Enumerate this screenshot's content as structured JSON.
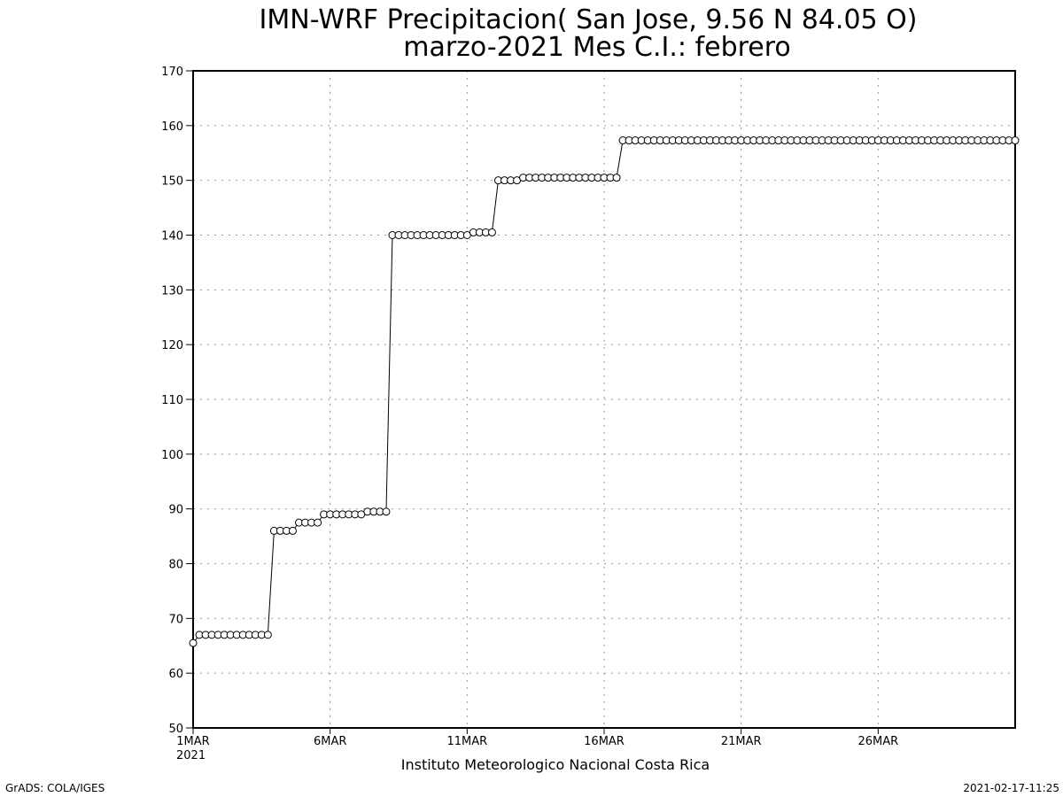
{
  "chart_data": {
    "type": "line",
    "title_line1": "IMN-WRF  Precipitacion( San Jose, 9.56  N 84.05  O)",
    "title_line2": "marzo-2021 Mes C.I.: febrero",
    "subtitle": "Instituto Meteorologico Nacional Costa Rica",
    "footer_left": "GrADS: COLA/IGES",
    "footer_right": "2021-02-17-11:25",
    "x_start_label": "1MAR",
    "x_start_year": "2021",
    "x_ticks": [
      {
        "label": "1MAR",
        "day": 1
      },
      {
        "label": "6MAR",
        "day": 6
      },
      {
        "label": "11MAR",
        "day": 11
      },
      {
        "label": "16MAR",
        "day": 16
      },
      {
        "label": "21MAR",
        "day": 21
      },
      {
        "label": "26MAR",
        "day": 26
      }
    ],
    "xlim": [
      1,
      31
    ],
    "ylim": [
      50,
      170
    ],
    "y_ticks": [
      50,
      60,
      70,
      80,
      90,
      100,
      110,
      120,
      130,
      140,
      150,
      160,
      170
    ],
    "grid": true,
    "marker": "open-circle",
    "line_color": "#000000",
    "series": [
      {
        "values": [
          65.5,
          67,
          67,
          67,
          67,
          67,
          67,
          67,
          67,
          67,
          67,
          67,
          67,
          86,
          86,
          86,
          86,
          87.5,
          87.5,
          87.5,
          87.5,
          89,
          89,
          89,
          89,
          89,
          89,
          89,
          89.5,
          89.5,
          89.5,
          89.5,
          140,
          140,
          140,
          140,
          140,
          140,
          140,
          140,
          140,
          140,
          140,
          140,
          140,
          140.5,
          140.5,
          140.5,
          140.5,
          150,
          150,
          150,
          150,
          150.5,
          150.5,
          150.5,
          150.5,
          150.5,
          150.5,
          150.5,
          150.5,
          150.5,
          150.5,
          150.5,
          150.5,
          150.5,
          150.5,
          150.5,
          150.5,
          157.3,
          157.3,
          157.3,
          157.3,
          157.3,
          157.3,
          157.3,
          157.3,
          157.3,
          157.3,
          157.3,
          157.3,
          157.3,
          157.3,
          157.3,
          157.3,
          157.3,
          157.3,
          157.3,
          157.3,
          157.3,
          157.3,
          157.3,
          157.3,
          157.3,
          157.3,
          157.3,
          157.3,
          157.3,
          157.3,
          157.3,
          157.3,
          157.3,
          157.3,
          157.3,
          157.3,
          157.3,
          157.3,
          157.3,
          157.3,
          157.3,
          157.3,
          157.3,
          157.3,
          157.3,
          157.3,
          157.3,
          157.3,
          157.3,
          157.3,
          157.3,
          157.3,
          157.3,
          157.3,
          157.3,
          157.3,
          157.3,
          157.3,
          157.3,
          157.3,
          157.3,
          157.3,
          157.3,
          157.3
        ]
      }
    ]
  }
}
